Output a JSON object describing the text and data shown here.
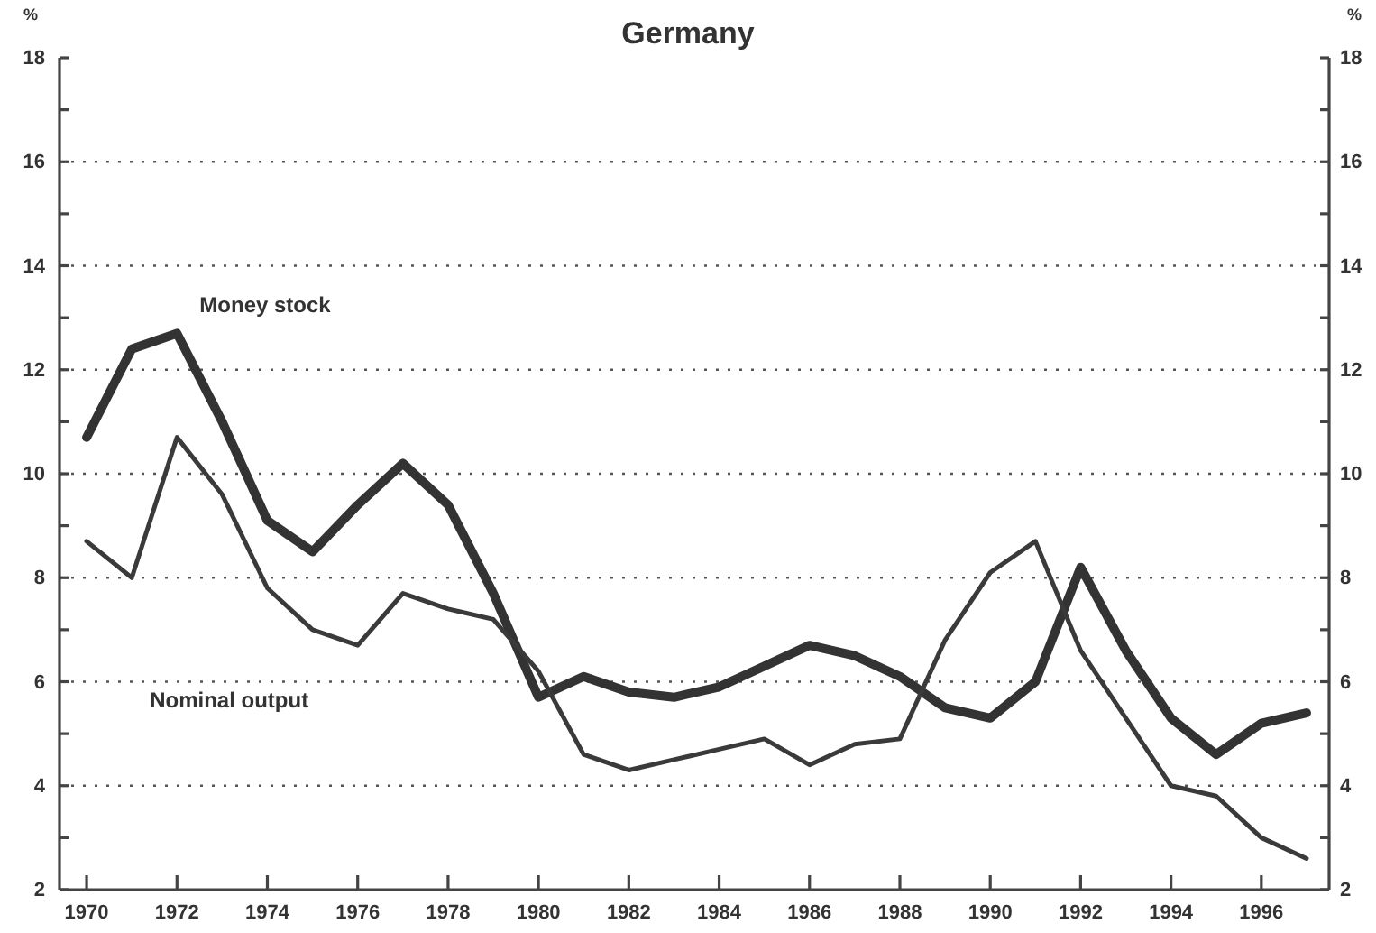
{
  "chart_data": {
    "type": "line",
    "title": "Germany",
    "ylabel": "%",
    "y2label": "%",
    "x": [
      1970,
      1971,
      1972,
      1973,
      1974,
      1975,
      1976,
      1977,
      1978,
      1979,
      1980,
      1981,
      1982,
      1983,
      1984,
      1985,
      1986,
      1987,
      1988,
      1989,
      1990,
      1991,
      1992,
      1993,
      1994,
      1995,
      1996,
      1997
    ],
    "series": [
      {
        "name": "Money stock",
        "color": "#333333",
        "values": [
          10.7,
          12.4,
          12.7,
          11.0,
          9.1,
          8.5,
          9.4,
          10.2,
          9.4,
          7.7,
          5.7,
          6.1,
          5.8,
          5.7,
          5.9,
          6.3,
          6.7,
          6.5,
          6.1,
          5.5,
          5.3,
          6.0,
          8.2,
          6.6,
          5.3,
          4.6,
          5.2,
          5.4
        ]
      },
      {
        "name": "Nominal output",
        "color": "#3a3a3a",
        "values": [
          8.7,
          8.0,
          10.7,
          9.6,
          7.8,
          7.0,
          6.7,
          7.7,
          7.4,
          7.2,
          6.2,
          4.6,
          4.3,
          4.5,
          4.7,
          4.9,
          4.4,
          4.8,
          4.9,
          6.8,
          8.1,
          8.7,
          6.6,
          5.3,
          4.0,
          3.8,
          3.0,
          2.6
        ]
      }
    ],
    "xlim": [
      1969.4,
      1997.5
    ],
    "xticks": [
      1970,
      1972,
      1974,
      1976,
      1978,
      1980,
      1982,
      1984,
      1986,
      1988,
      1990,
      1992,
      1994,
      1996
    ],
    "ylim": [
      2,
      18
    ],
    "yticks": [
      2,
      {
        "value": 3,
        "label": null
      },
      4,
      {
        "value": 5,
        "label": null
      },
      6,
      {
        "value": 7,
        "label": null
      },
      8,
      {
        "value": 9,
        "label": null
      },
      10,
      {
        "value": 11,
        "label": null
      },
      12,
      {
        "value": 13,
        "label": null
      },
      14,
      {
        "value": 15,
        "label": null
      },
      16,
      {
        "value": 17,
        "label": null
      },
      18
    ],
    "y2lim": [
      2,
      18
    ],
    "y2ticks": [
      2,
      {
        "value": 3,
        "label": null
      },
      4,
      {
        "value": 5,
        "label": null
      },
      6,
      {
        "value": 7,
        "label": null
      },
      8,
      {
        "value": 9,
        "label": null
      },
      10,
      {
        "value": 11,
        "label": null
      },
      12,
      {
        "value": 13,
        "label": null
      },
      14,
      {
        "value": 15,
        "label": null
      },
      16,
      {
        "value": 17,
        "label": null
      },
      18
    ],
    "grid": "y",
    "legend": false,
    "marker": "none",
    "line_style": "solid"
  }
}
